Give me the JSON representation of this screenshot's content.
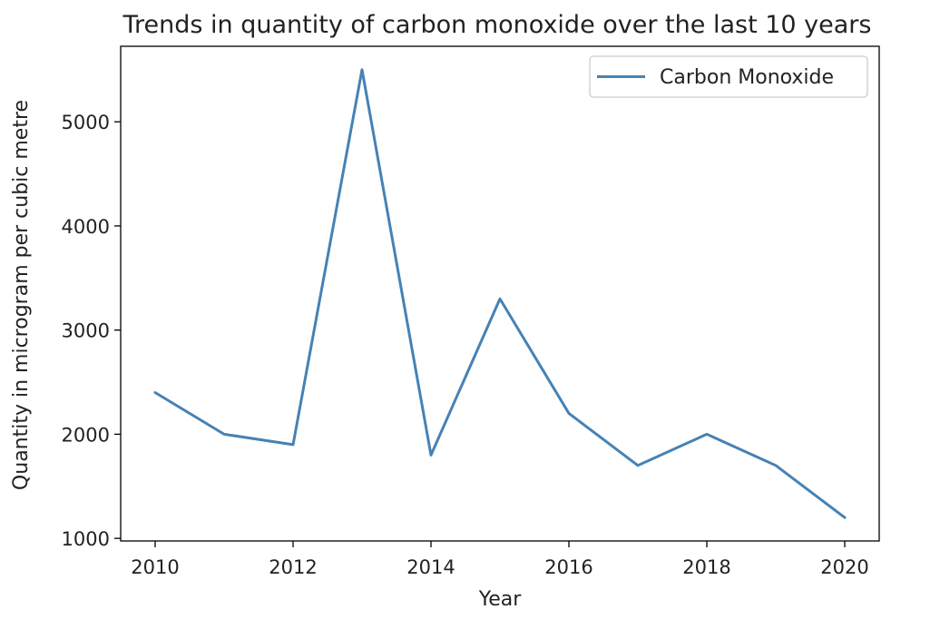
{
  "chart_data": {
    "type": "line",
    "title": "Trends in quantity of carbon monoxide over the last 10 years",
    "xlabel": "Year",
    "ylabel": "Quantity in microgram per cubic metre",
    "x": [
      2010,
      2011,
      2012,
      2013,
      2014,
      2015,
      2016,
      2017,
      2018,
      2019,
      2020
    ],
    "series": [
      {
        "name": "Carbon Monoxide",
        "color": "#4682b4",
        "values": [
          2400,
          2000,
          1900,
          5500,
          1800,
          3300,
          2200,
          1700,
          2000,
          1700,
          1200
        ]
      }
    ],
    "xticks": [
      2010,
      2012,
      2014,
      2016,
      2018,
      2020
    ],
    "yticks": [
      1000,
      2000,
      3000,
      4000,
      5000
    ],
    "xlim": [
      2009.5,
      2020.5
    ],
    "ylim": [
      975,
      5725
    ],
    "grid": false,
    "legend_position": "upper right"
  }
}
